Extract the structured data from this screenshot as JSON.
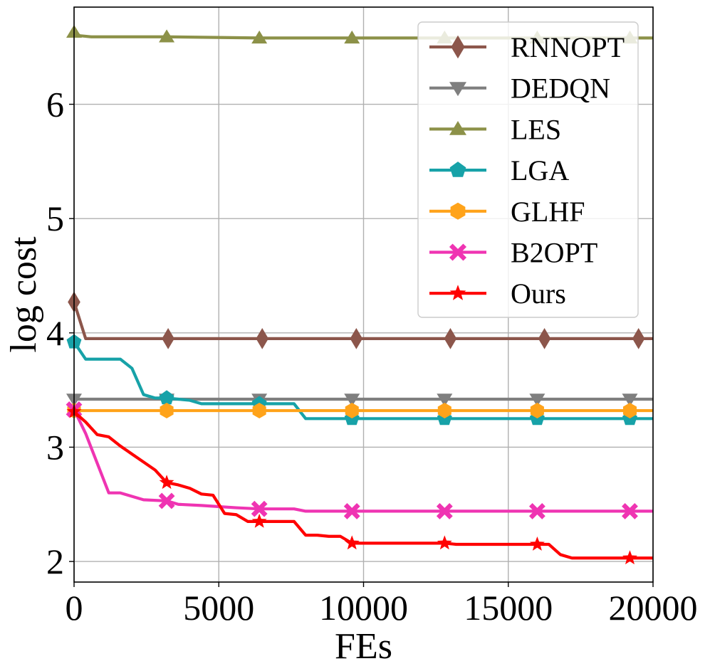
{
  "chart_data": {
    "type": "line",
    "title": "",
    "xlabel": "FEs",
    "ylabel": "log cost",
    "xlim": [
      0,
      20000
    ],
    "ylim": [
      1.82,
      6.85
    ],
    "xticks": [
      0,
      5000,
      10000,
      15000,
      20000
    ],
    "xtick_labels": [
      "0",
      "5000",
      "10000",
      "15000",
      "20000"
    ],
    "yticks": [
      2,
      3,
      4,
      5,
      6
    ],
    "ytick_labels": [
      "2",
      "3",
      "4",
      "5",
      "6"
    ],
    "grid": true,
    "legend_position": "top-right",
    "marker_x": [
      0,
      3200,
      6400,
      9600,
      12800,
      16000,
      19200
    ],
    "series": [
      {
        "name": "RNNOPT",
        "color": "#8c564b",
        "marker": "diamond",
        "x": [
          0,
          400,
          20000
        ],
        "y": [
          4.27,
          3.95,
          3.95
        ],
        "marker_x": [
          0,
          3250,
          6500,
          9750,
          13000,
          16250,
          19500
        ]
      },
      {
        "name": "DEDQN",
        "color": "#7f7f7f",
        "marker": "triangle-down",
        "x": [
          0,
          20000
        ],
        "y": [
          3.42,
          3.42
        ]
      },
      {
        "name": "LES",
        "color": "#8c9148",
        "marker": "triangle-up",
        "x": [
          0,
          200,
          600,
          3200,
          6400,
          20000
        ],
        "y": [
          6.63,
          6.6,
          6.59,
          6.59,
          6.58,
          6.58
        ]
      },
      {
        "name": "LGA",
        "color": "#17a2a8",
        "marker": "pentagon",
        "x": [
          0,
          400,
          1600,
          2000,
          2400,
          2800,
          3200,
          3600,
          4000,
          4400,
          5600,
          6400,
          7600,
          8000,
          20000
        ],
        "y": [
          3.92,
          3.77,
          3.77,
          3.69,
          3.46,
          3.43,
          3.43,
          3.42,
          3.41,
          3.38,
          3.38,
          3.38,
          3.38,
          3.25,
          3.25
        ]
      },
      {
        "name": "GLHF",
        "color": "#ffa31a",
        "marker": "hexagon",
        "x": [
          0,
          20000
        ],
        "y": [
          3.32,
          3.32
        ]
      },
      {
        "name": "B2OPT",
        "color": "#ef34b2",
        "marker": "x",
        "x": [
          0,
          400,
          1200,
          1600,
          2400,
          3200,
          3600,
          4400,
          5600,
          6400,
          7600,
          8000,
          20000
        ],
        "y": [
          3.33,
          3.12,
          2.6,
          2.6,
          2.54,
          2.53,
          2.5,
          2.49,
          2.47,
          2.46,
          2.46,
          2.44,
          2.44
        ]
      },
      {
        "name": "Ours",
        "color": "#ff0000",
        "marker": "star",
        "x": [
          0,
          400,
          800,
          1200,
          1600,
          2000,
          2400,
          2800,
          3200,
          3600,
          4000,
          4400,
          4800,
          5200,
          5600,
          6000,
          6400,
          6800,
          7200,
          7600,
          8000,
          8400,
          8800,
          9200,
          9600,
          10400,
          12800,
          13200,
          14400,
          16000,
          16400,
          16800,
          17200,
          18000,
          20000
        ],
        "y": [
          3.31,
          3.22,
          3.11,
          3.09,
          3.01,
          2.94,
          2.87,
          2.8,
          2.69,
          2.67,
          2.64,
          2.59,
          2.58,
          2.42,
          2.41,
          2.35,
          2.35,
          2.35,
          2.35,
          2.35,
          2.23,
          2.23,
          2.22,
          2.22,
          2.16,
          2.16,
          2.16,
          2.15,
          2.15,
          2.15,
          2.15,
          2.06,
          2.03,
          2.03,
          2.03
        ]
      }
    ]
  }
}
